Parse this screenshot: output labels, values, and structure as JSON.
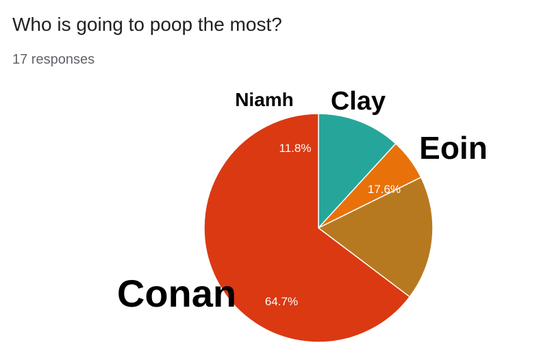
{
  "form": {
    "question": "Who is going to poop the most?",
    "responses": "17 responses"
  },
  "chart_data": {
    "type": "pie",
    "title": "Who is going to poop the most?",
    "slices": [
      {
        "label": "Niamh",
        "value": 11.8,
        "pct_label": "11.8%",
        "color": "#26a69a"
      },
      {
        "label": "Clay",
        "value": 5.9,
        "pct_label": "",
        "color": "#e8710a"
      },
      {
        "label": "Eoin",
        "value": 17.6,
        "pct_label": "17.6%",
        "color": "#b7791f"
      },
      {
        "label": "Conan",
        "value": 64.7,
        "pct_label": "64.7%",
        "color": "#db3912"
      }
    ],
    "slice_border_color": "#ffffff"
  }
}
